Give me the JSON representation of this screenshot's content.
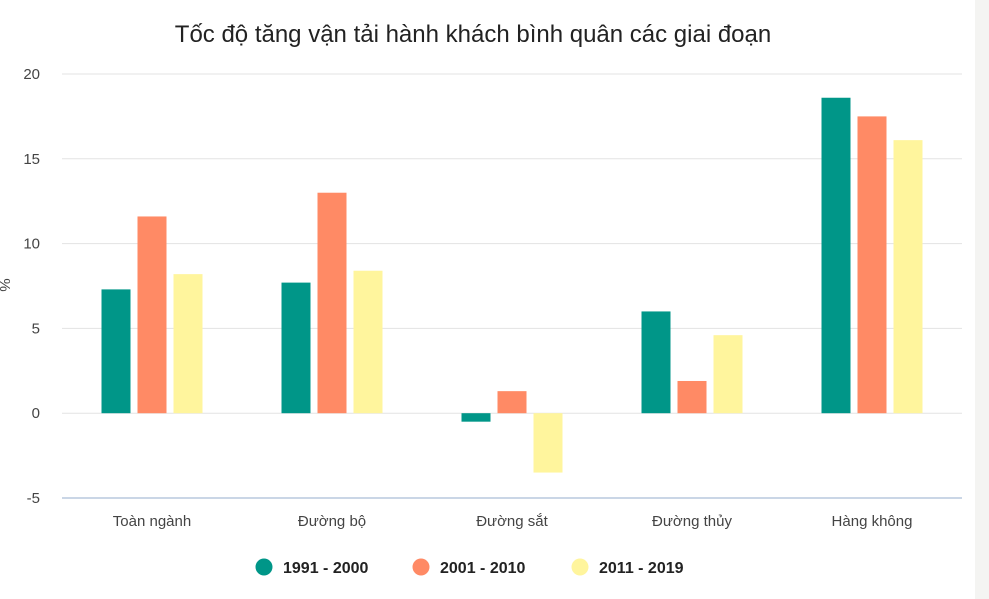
{
  "chart_data": {
    "type": "bar",
    "title": "Tốc độ tăng vận tải hành khách bình quân các giai đoạn",
    "xlabel": "",
    "ylabel": "%",
    "categories": [
      "Toàn ngành",
      "Đường bộ",
      "Đường sắt",
      "Đường thủy",
      "Hàng không"
    ],
    "ylim": [
      -5,
      20
    ],
    "yticks": [
      -5,
      0,
      5,
      10,
      15,
      20
    ],
    "grid": true,
    "legend_position": "bottom-center",
    "series": [
      {
        "name": "1991 - 2000",
        "color": "#009688",
        "values": [
          7.3,
          7.7,
          -0.5,
          6.0,
          18.6
        ]
      },
      {
        "name": "2001 - 2010",
        "color": "#ff8a65",
        "values": [
          11.6,
          13.0,
          1.3,
          1.9,
          17.5
        ]
      },
      {
        "name": "2011 - 2019",
        "color": "#fff59d",
        "values": [
          8.2,
          8.4,
          -3.5,
          4.6,
          16.1
        ]
      }
    ]
  }
}
